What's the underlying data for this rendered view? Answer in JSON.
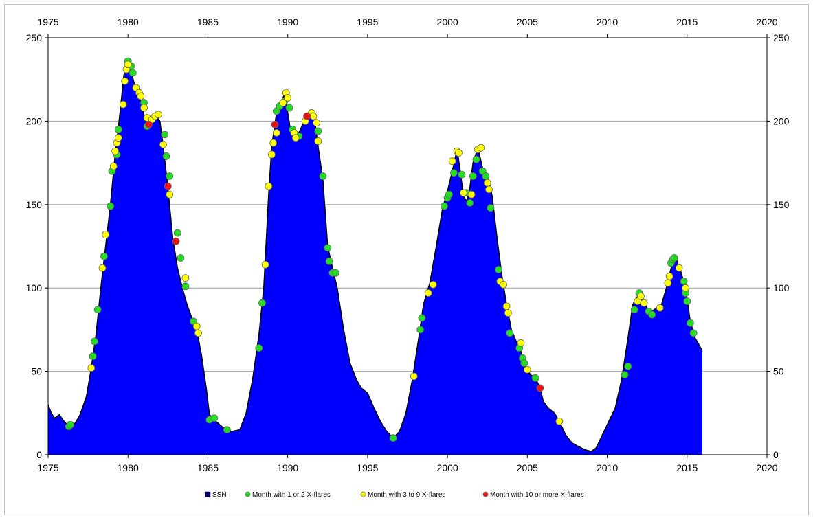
{
  "chart_data": {
    "type": "area",
    "title": "",
    "xlabel": "",
    "ylabel": "",
    "xlim": [
      1975,
      2020
    ],
    "ylim": [
      0,
      250
    ],
    "x_ticks": [
      "1975",
      "1980",
      "1985",
      "1990",
      "1995",
      "2000",
      "2005",
      "2010",
      "2015",
      "2020"
    ],
    "y_ticks": [
      "0",
      "50",
      "100",
      "150",
      "200",
      "250"
    ],
    "grid": "horizontal",
    "secondary_axes": "top and right (mirrored)",
    "legend_position": "bottom",
    "legend": [
      {
        "label": "SSN",
        "marker": "square",
        "color": "#0000ff"
      },
      {
        "label": "Month with 1 or 2 X-flares",
        "marker": "circle",
        "color": "#22dd22"
      },
      {
        "label": "Month with 3 to 9 X-flares",
        "marker": "circle",
        "color": "#ffff00"
      },
      {
        "label": "Month with 10 or more X-flares",
        "marker": "circle",
        "color": "#ee1111"
      }
    ],
    "series": [
      {
        "name": "SSN",
        "color": "#0000ff",
        "points": [
          [
            1975.0,
            30
          ],
          [
            1975.2,
            25
          ],
          [
            1975.4,
            22
          ],
          [
            1975.7,
            24
          ],
          [
            1976.0,
            20
          ],
          [
            1976.3,
            17
          ],
          [
            1976.7,
            19
          ],
          [
            1977.0,
            24
          ],
          [
            1977.4,
            35
          ],
          [
            1977.7,
            52
          ],
          [
            1978.0,
            72
          ],
          [
            1978.3,
            100
          ],
          [
            1978.6,
            125
          ],
          [
            1978.9,
            150
          ],
          [
            1979.2,
            180
          ],
          [
            1979.5,
            205
          ],
          [
            1979.75,
            228
          ],
          [
            1979.95,
            234
          ],
          [
            1980.2,
            230
          ],
          [
            1980.5,
            218
          ],
          [
            1980.8,
            212
          ],
          [
            1981.1,
            200
          ],
          [
            1981.4,
            198
          ],
          [
            1981.8,
            203
          ],
          [
            1982.0,
            200
          ],
          [
            1982.2,
            185
          ],
          [
            1982.5,
            160
          ],
          [
            1982.8,
            130
          ],
          [
            1983.1,
            112
          ],
          [
            1983.4,
            100
          ],
          [
            1983.7,
            90
          ],
          [
            1984.0,
            82
          ],
          [
            1984.3,
            75
          ],
          [
            1984.6,
            60
          ],
          [
            1984.9,
            40
          ],
          [
            1985.1,
            24
          ],
          [
            1985.5,
            20
          ],
          [
            1986.0,
            16
          ],
          [
            1986.5,
            14
          ],
          [
            1987.0,
            15
          ],
          [
            1987.4,
            25
          ],
          [
            1987.8,
            45
          ],
          [
            1988.2,
            72
          ],
          [
            1988.5,
            100
          ],
          [
            1988.8,
            155
          ],
          [
            1989.0,
            185
          ],
          [
            1989.3,
            205
          ],
          [
            1989.6,
            212
          ],
          [
            1989.8,
            216
          ],
          [
            1990.0,
            205
          ],
          [
            1990.2,
            193
          ],
          [
            1990.5,
            190
          ],
          [
            1990.8,
            195
          ],
          [
            1991.1,
            202
          ],
          [
            1991.4,
            206
          ],
          [
            1991.7,
            200
          ],
          [
            1991.9,
            185
          ],
          [
            1992.2,
            165
          ],
          [
            1992.5,
            125
          ],
          [
            1992.8,
            112
          ],
          [
            1993.1,
            100
          ],
          [
            1993.5,
            75
          ],
          [
            1993.9,
            55
          ],
          [
            1994.3,
            45
          ],
          [
            1994.6,
            40
          ],
          [
            1995.0,
            37
          ],
          [
            1995.4,
            28
          ],
          [
            1995.8,
            20
          ],
          [
            1996.2,
            14
          ],
          [
            1996.6,
            10
          ],
          [
            1997.0,
            14
          ],
          [
            1997.4,
            25
          ],
          [
            1997.8,
            45
          ],
          [
            1998.2,
            70
          ],
          [
            1998.5,
            90
          ],
          [
            1998.9,
            103
          ],
          [
            1999.3,
            125
          ],
          [
            1999.7,
            148
          ],
          [
            2000.0,
            158
          ],
          [
            2000.3,
            170
          ],
          [
            2000.6,
            183
          ],
          [
            2000.8,
            170
          ],
          [
            2001.0,
            155
          ],
          [
            2001.2,
            152
          ],
          [
            2001.4,
            160
          ],
          [
            2001.6,
            175
          ],
          [
            2001.9,
            184
          ],
          [
            2002.2,
            172
          ],
          [
            2002.5,
            168
          ],
          [
            2002.8,
            155
          ],
          [
            2003.1,
            130
          ],
          [
            2003.4,
            108
          ],
          [
            2003.7,
            90
          ],
          [
            2004.0,
            75
          ],
          [
            2004.3,
            68
          ],
          [
            2004.6,
            62
          ],
          [
            2004.9,
            52
          ],
          [
            2005.2,
            48
          ],
          [
            2005.5,
            46
          ],
          [
            2005.8,
            40
          ],
          [
            2006.0,
            32
          ],
          [
            2006.3,
            28
          ],
          [
            2006.7,
            25
          ],
          [
            2007.0,
            20
          ],
          [
            2007.4,
            12
          ],
          [
            2007.8,
            7
          ],
          [
            2008.2,
            5
          ],
          [
            2008.6,
            3
          ],
          [
            2009.0,
            2
          ],
          [
            2009.3,
            4
          ],
          [
            2009.7,
            12
          ],
          [
            2010.1,
            20
          ],
          [
            2010.5,
            28
          ],
          [
            2010.9,
            45
          ],
          [
            2011.3,
            70
          ],
          [
            2011.6,
            90
          ],
          [
            2011.9,
            95
          ],
          [
            2012.2,
            93
          ],
          [
            2012.5,
            88
          ],
          [
            2012.8,
            86
          ],
          [
            2013.1,
            88
          ],
          [
            2013.4,
            90
          ],
          [
            2013.7,
            100
          ],
          [
            2014.0,
            112
          ],
          [
            2014.3,
            118
          ],
          [
            2014.6,
            110
          ],
          [
            2014.9,
            100
          ],
          [
            2015.2,
            80
          ],
          [
            2015.5,
            70
          ],
          [
            2015.8,
            65
          ],
          [
            2015.95,
            62
          ]
        ]
      },
      {
        "name": "Month with 1 or 2 X-flares",
        "color": "#22dd22",
        "points": [
          [
            1976.3,
            17
          ],
          [
            1976.4,
            18
          ],
          [
            1977.8,
            59
          ],
          [
            1977.9,
            68
          ],
          [
            1978.1,
            87
          ],
          [
            1978.5,
            119
          ],
          [
            1978.9,
            149
          ],
          [
            1979.0,
            170
          ],
          [
            1979.3,
            180
          ],
          [
            1979.4,
            195
          ],
          [
            1980.0,
            236
          ],
          [
            1980.2,
            233
          ],
          [
            1980.3,
            229
          ],
          [
            1981.0,
            211
          ],
          [
            1981.2,
            197
          ],
          [
            1982.3,
            192
          ],
          [
            1982.4,
            179
          ],
          [
            1982.6,
            167
          ],
          [
            1983.1,
            133
          ],
          [
            1983.3,
            118
          ],
          [
            1983.6,
            101
          ],
          [
            1984.1,
            80
          ],
          [
            1985.1,
            21
          ],
          [
            1985.4,
            22
          ],
          [
            1986.2,
            15
          ],
          [
            1988.2,
            64
          ],
          [
            1988.4,
            91
          ],
          [
            1989.3,
            206
          ],
          [
            1989.5,
            209
          ],
          [
            1989.8,
            212
          ],
          [
            1990.1,
            208
          ],
          [
            1990.3,
            195
          ],
          [
            1990.7,
            191
          ],
          [
            1991.9,
            194
          ],
          [
            1992.2,
            167
          ],
          [
            1992.5,
            124
          ],
          [
            1992.6,
            116
          ],
          [
            1992.8,
            109
          ],
          [
            1993.0,
            109
          ],
          [
            1996.6,
            10
          ],
          [
            1998.3,
            75
          ],
          [
            1998.4,
            82
          ],
          [
            1999.8,
            149
          ],
          [
            2000.0,
            154
          ],
          [
            2000.1,
            156
          ],
          [
            2000.4,
            169
          ],
          [
            2000.9,
            168
          ],
          [
            2001.2,
            157
          ],
          [
            2001.4,
            151
          ],
          [
            2001.6,
            167
          ],
          [
            2001.8,
            177
          ],
          [
            2002.2,
            170
          ],
          [
            2002.4,
            167
          ],
          [
            2002.7,
            148
          ],
          [
            2003.2,
            111
          ],
          [
            2003.9,
            73
          ],
          [
            2004.5,
            64
          ],
          [
            2004.7,
            58
          ],
          [
            2004.8,
            55
          ],
          [
            2005.5,
            46
          ],
          [
            2011.1,
            48
          ],
          [
            2011.3,
            53
          ],
          [
            2011.7,
            87
          ],
          [
            2012.0,
            97
          ],
          [
            2012.6,
            86
          ],
          [
            2012.8,
            84
          ],
          [
            2014.0,
            115
          ],
          [
            2014.1,
            117
          ],
          [
            2014.2,
            118
          ],
          [
            2014.8,
            104
          ],
          [
            2014.9,
            97
          ],
          [
            2015.0,
            92
          ],
          [
            2015.2,
            79
          ],
          [
            2015.4,
            73
          ]
        ]
      },
      {
        "name": "Month with 3 to 9 X-flares",
        "color": "#ffff00",
        "points": [
          [
            1977.7,
            52
          ],
          [
            1978.4,
            112
          ],
          [
            1978.6,
            132
          ],
          [
            1979.1,
            173
          ],
          [
            1979.2,
            182
          ],
          [
            1979.3,
            187
          ],
          [
            1979.4,
            190
          ],
          [
            1979.7,
            210
          ],
          [
            1979.8,
            224
          ],
          [
            1979.9,
            231
          ],
          [
            1980.0,
            234
          ],
          [
            1980.5,
            220
          ],
          [
            1980.7,
            217
          ],
          [
            1980.8,
            215
          ],
          [
            1981.0,
            208
          ],
          [
            1981.2,
            202
          ],
          [
            1981.5,
            201
          ],
          [
            1981.7,
            203
          ],
          [
            1981.9,
            204
          ],
          [
            1982.2,
            186
          ],
          [
            1982.6,
            156
          ],
          [
            1983.6,
            106
          ],
          [
            1984.3,
            77
          ],
          [
            1984.4,
            73
          ],
          [
            1988.6,
            114
          ],
          [
            1988.8,
            161
          ],
          [
            1989.0,
            180
          ],
          [
            1989.1,
            187
          ],
          [
            1989.3,
            193
          ],
          [
            1989.7,
            211
          ],
          [
            1989.9,
            217
          ],
          [
            1990.0,
            214
          ],
          [
            1990.4,
            193
          ],
          [
            1990.5,
            190
          ],
          [
            1991.1,
            200
          ],
          [
            1991.5,
            205
          ],
          [
            1991.6,
            203
          ],
          [
            1991.8,
            199
          ],
          [
            1991.9,
            188
          ],
          [
            1997.9,
            47
          ],
          [
            1998.8,
            97
          ],
          [
            1999.1,
            102
          ],
          [
            2000.3,
            176
          ],
          [
            2000.6,
            182
          ],
          [
            2000.7,
            181
          ],
          [
            2001.0,
            157
          ],
          [
            2001.5,
            156
          ],
          [
            2001.9,
            183
          ],
          [
            2002.1,
            184
          ],
          [
            2002.5,
            163
          ],
          [
            2002.6,
            159
          ],
          [
            2003.3,
            104
          ],
          [
            2003.5,
            102
          ],
          [
            2003.7,
            89
          ],
          [
            2003.8,
            85
          ],
          [
            2004.6,
            67
          ],
          [
            2005.0,
            51
          ],
          [
            2007.0,
            20
          ],
          [
            2011.9,
            92
          ],
          [
            2012.1,
            95
          ],
          [
            2012.3,
            91
          ],
          [
            2013.3,
            88
          ],
          [
            2013.8,
            103
          ],
          [
            2013.9,
            107
          ],
          [
            2014.5,
            112
          ],
          [
            2014.9,
            100
          ]
        ]
      },
      {
        "name": "Month with 10 or more X-flares",
        "color": "#ee1111",
        "points": [
          [
            1981.3,
            198
          ],
          [
            1982.5,
            161
          ],
          [
            1983.0,
            128
          ],
          [
            1989.2,
            198
          ],
          [
            1991.2,
            203
          ],
          [
            2005.8,
            40
          ]
        ]
      }
    ]
  }
}
